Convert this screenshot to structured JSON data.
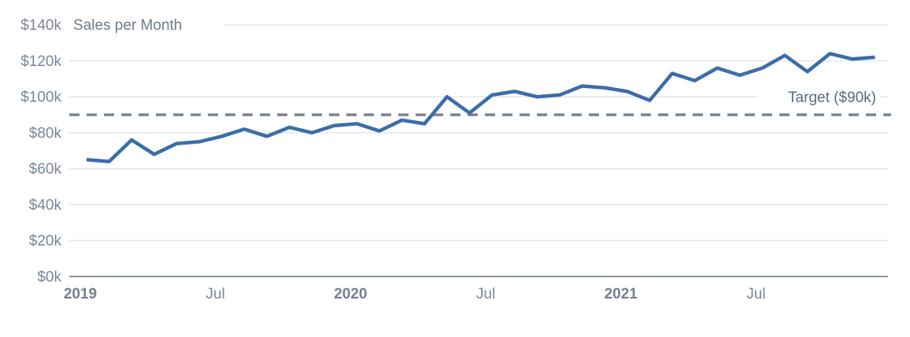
{
  "colors": {
    "line": "#3b6da8",
    "target": "#7b8592",
    "grid": "#e3e6ea",
    "axis": "#8b95a1",
    "tick_text": "#7b8595",
    "target_text": "#5b6a7d"
  },
  "chart_data": {
    "type": "line",
    "title": "Sales per Month",
    "unit": "USD thousands",
    "categories": [
      "Jan 2019",
      "Feb 2019",
      "Mar 2019",
      "Apr 2019",
      "May 2019",
      "Jun 2019",
      "Jul 2019",
      "Aug 2019",
      "Sep 2019",
      "Oct 2019",
      "Nov 2019",
      "Dec 2019",
      "Jan 2020",
      "Feb 2020",
      "Mar 2020",
      "Apr 2020",
      "May 2020",
      "Jun 2020",
      "Jul 2020",
      "Aug 2020",
      "Sep 2020",
      "Oct 2020",
      "Nov 2020",
      "Dec 2020",
      "Jan 2021",
      "Feb 2021",
      "Mar 2021",
      "Apr 2021",
      "May 2021",
      "Jun 2021",
      "Jul 2021",
      "Aug 2021",
      "Sep 2021",
      "Oct 2021",
      "Nov 2021",
      "Dec 2021"
    ],
    "values": [
      65,
      64,
      76,
      68,
      74,
      75,
      78,
      82,
      78,
      83,
      80,
      84,
      85,
      81,
      87,
      85,
      100,
      91,
      101,
      103,
      100,
      101,
      106,
      105,
      103,
      98,
      113,
      109,
      116,
      112,
      116,
      123,
      114,
      124,
      121,
      122
    ],
    "ylim": [
      0,
      140
    ],
    "y_ticks": [
      {
        "value": 0,
        "label": "$0k"
      },
      {
        "value": 20,
        "label": "$20k"
      },
      {
        "value": 40,
        "label": "$40k"
      },
      {
        "value": 60,
        "label": "$60k"
      },
      {
        "value": 80,
        "label": "$80k"
      },
      {
        "value": 100,
        "label": "$100k"
      },
      {
        "value": 120,
        "label": "$120k"
      },
      {
        "value": 140,
        "label": "$140k"
      }
    ],
    "x_ticks": [
      {
        "label": "2019",
        "month_index": 0,
        "bold": true
      },
      {
        "label": "Jul",
        "month_index": 6,
        "bold": false
      },
      {
        "label": "2020",
        "month_index": 12,
        "bold": true
      },
      {
        "label": "Jul",
        "month_index": 18,
        "bold": false
      },
      {
        "label": "2021",
        "month_index": 24,
        "bold": true
      },
      {
        "label": "Jul",
        "month_index": 30,
        "bold": false
      }
    ],
    "target": 90,
    "target_label": "Target ($90k)",
    "legend": "none",
    "grid": "horizontal-only"
  }
}
